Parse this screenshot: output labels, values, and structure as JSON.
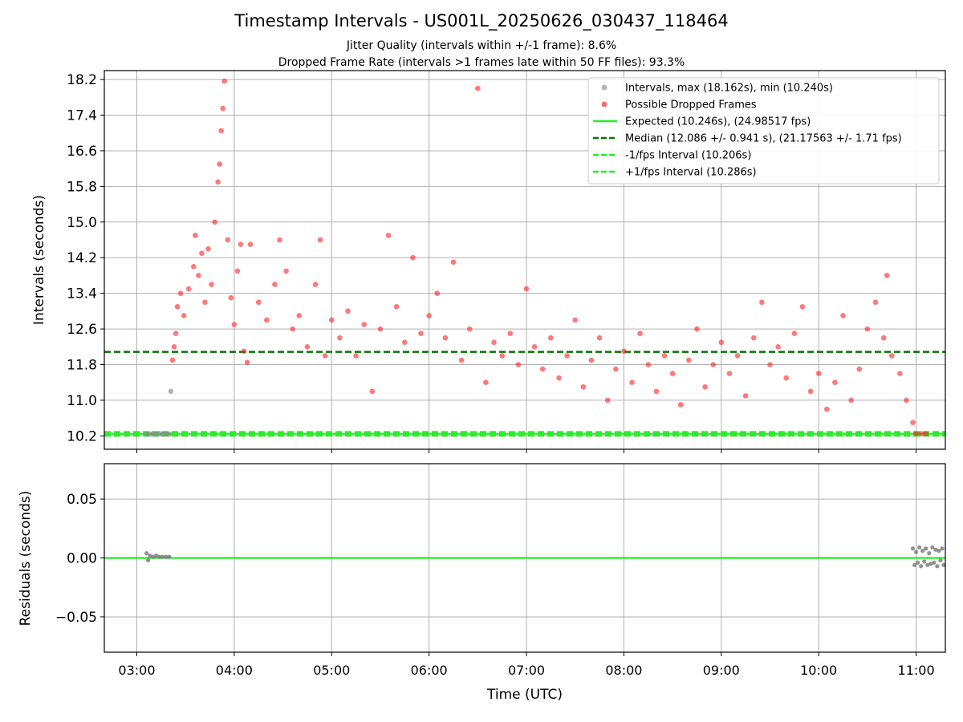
{
  "chart_data": [
    {
      "type": "scatter",
      "title": "Timestamp Intervals - US001L_20250626_030437_118464",
      "subtitles": [
        "Jitter Quality (intervals within +/-1 frame): 8.6%",
        "Dropped Frame Rate (intervals >1 frames late within 50 FF files): 93.3%"
      ],
      "xlabel": "",
      "ylabel": "Intervals (seconds)",
      "xlim": [
        "02:40",
        "11:18"
      ],
      "ylim": [
        9.9,
        18.4
      ],
      "yticks": [
        10.2,
        11.0,
        11.8,
        12.6,
        13.4,
        14.2,
        15.0,
        15.8,
        16.6,
        17.4,
        18.2
      ],
      "ytick_labels": [
        "10.2",
        "11.0",
        "11.8",
        "12.6",
        "13.4",
        "14.2",
        "15.0",
        "15.8",
        "16.6",
        "17.4",
        "18.2"
      ],
      "xticks": [
        "03:00",
        "04:00",
        "05:00",
        "06:00",
        "07:00",
        "08:00",
        "09:00",
        "10:00",
        "11:00"
      ],
      "grid": true,
      "legend_position": "top-right",
      "legend": [
        {
          "label": "Intervals, max (18.162s), min (10.240s)",
          "kind": "marker",
          "color": "#999999"
        },
        {
          "label": "Possible Dropped Frames",
          "kind": "marker",
          "color": "#ff3333"
        },
        {
          "label": "Expected (10.246s), (24.98517 fps)",
          "kind": "solid",
          "color": "#22ee22"
        },
        {
          "label": "Median (12.086 +/- 0.941 s), (21.17563 +/- 1.71 fps)",
          "kind": "dashed",
          "color": "#007700"
        },
        {
          "label": "-1/fps Interval (10.206s)",
          "kind": "dashed",
          "color": "#22ee22"
        },
        {
          "label": "+1/fps Interval (10.286s)",
          "kind": "dashed",
          "color": "#22ee22"
        }
      ],
      "reference_lines": [
        {
          "name": "Expected",
          "y": 10.246,
          "style": "solid",
          "color": "#22ee22"
        },
        {
          "name": "Median",
          "y": 12.086,
          "style": "dashed",
          "color": "#007700"
        },
        {
          "name": "-1/fps Interval",
          "y": 10.206,
          "style": "dashed",
          "color": "#22ee22"
        },
        {
          "name": "+1/fps Interval",
          "y": 10.286,
          "style": "dashed",
          "color": "#22ee22"
        }
      ],
      "series": [
        {
          "kind": "normal",
          "color": "#888888",
          "points": [
            {
              "x": "03:06",
              "y": 10.24
            },
            {
              "x": "03:08",
              "y": 10.24
            },
            {
              "x": "03:10",
              "y": 10.25
            },
            {
              "x": "03:12",
              "y": 10.24
            },
            {
              "x": "03:14",
              "y": 10.25
            },
            {
              "x": "03:16",
              "y": 10.24
            },
            {
              "x": "03:18",
              "y": 10.25
            },
            {
              "x": "03:20",
              "y": 10.24
            },
            {
              "x": "03:21",
              "y": 11.2
            }
          ]
        },
        {
          "kind": "dropped",
          "color": "#ff2020",
          "points": [
            {
              "x": "03:22",
              "y": 11.9
            },
            {
              "x": "03:23",
              "y": 12.2
            },
            {
              "x": "03:24",
              "y": 12.5
            },
            {
              "x": "03:25",
              "y": 13.1
            },
            {
              "x": "03:27",
              "y": 13.4
            },
            {
              "x": "03:29",
              "y": 12.9
            },
            {
              "x": "03:32",
              "y": 13.5
            },
            {
              "x": "03:35",
              "y": 14.0
            },
            {
              "x": "03:36",
              "y": 14.7
            },
            {
              "x": "03:38",
              "y": 13.8
            },
            {
              "x": "03:40",
              "y": 14.3
            },
            {
              "x": "03:42",
              "y": 13.2
            },
            {
              "x": "03:44",
              "y": 14.4
            },
            {
              "x": "03:46",
              "y": 13.6
            },
            {
              "x": "03:48",
              "y": 15.0
            },
            {
              "x": "03:50",
              "y": 15.9
            },
            {
              "x": "03:51",
              "y": 16.3
            },
            {
              "x": "03:52",
              "y": 17.05
            },
            {
              "x": "03:53",
              "y": 17.55
            },
            {
              "x": "03:54",
              "y": 18.162
            },
            {
              "x": "03:56",
              "y": 14.6
            },
            {
              "x": "03:58",
              "y": 13.3
            },
            {
              "x": "04:00",
              "y": 12.7
            },
            {
              "x": "04:02",
              "y": 13.9
            },
            {
              "x": "04:04",
              "y": 14.5
            },
            {
              "x": "04:06",
              "y": 12.1
            },
            {
              "x": "04:08",
              "y": 11.85
            },
            {
              "x": "04:10",
              "y": 14.5
            },
            {
              "x": "04:15",
              "y": 13.2
            },
            {
              "x": "04:20",
              "y": 12.8
            },
            {
              "x": "04:25",
              "y": 13.6
            },
            {
              "x": "04:28",
              "y": 14.6
            },
            {
              "x": "04:32",
              "y": 13.9
            },
            {
              "x": "04:36",
              "y": 12.6
            },
            {
              "x": "04:40",
              "y": 12.9
            },
            {
              "x": "04:45",
              "y": 12.2
            },
            {
              "x": "04:50",
              "y": 13.6
            },
            {
              "x": "04:53",
              "y": 14.6
            },
            {
              "x": "04:56",
              "y": 12.0
            },
            {
              "x": "05:00",
              "y": 12.8
            },
            {
              "x": "05:05",
              "y": 12.4
            },
            {
              "x": "05:10",
              "y": 13.0
            },
            {
              "x": "05:15",
              "y": 12.0
            },
            {
              "x": "05:20",
              "y": 12.7
            },
            {
              "x": "05:25",
              "y": 11.2
            },
            {
              "x": "05:30",
              "y": 12.6
            },
            {
              "x": "05:35",
              "y": 14.7
            },
            {
              "x": "05:40",
              "y": 13.1
            },
            {
              "x": "05:45",
              "y": 12.3
            },
            {
              "x": "05:50",
              "y": 14.2
            },
            {
              "x": "05:55",
              "y": 12.5
            },
            {
              "x": "06:00",
              "y": 12.9
            },
            {
              "x": "06:05",
              "y": 13.4
            },
            {
              "x": "06:10",
              "y": 12.4
            },
            {
              "x": "06:15",
              "y": 14.1
            },
            {
              "x": "06:20",
              "y": 11.9
            },
            {
              "x": "06:25",
              "y": 12.6
            },
            {
              "x": "06:30",
              "y": 18.0
            },
            {
              "x": "06:35",
              "y": 11.4
            },
            {
              "x": "06:40",
              "y": 12.3
            },
            {
              "x": "06:45",
              "y": 12.0
            },
            {
              "x": "06:50",
              "y": 12.5
            },
            {
              "x": "06:55",
              "y": 11.8
            },
            {
              "x": "07:00",
              "y": 13.5
            },
            {
              "x": "07:05",
              "y": 12.2
            },
            {
              "x": "07:10",
              "y": 11.7
            },
            {
              "x": "07:15",
              "y": 12.4
            },
            {
              "x": "07:20",
              "y": 11.5
            },
            {
              "x": "07:25",
              "y": 12.0
            },
            {
              "x": "07:30",
              "y": 12.8
            },
            {
              "x": "07:35",
              "y": 11.3
            },
            {
              "x": "07:40",
              "y": 11.9
            },
            {
              "x": "07:45",
              "y": 12.4
            },
            {
              "x": "07:50",
              "y": 11.0
            },
            {
              "x": "07:55",
              "y": 11.7
            },
            {
              "x": "08:00",
              "y": 12.1
            },
            {
              "x": "08:05",
              "y": 11.4
            },
            {
              "x": "08:10",
              "y": 12.5
            },
            {
              "x": "08:15",
              "y": 11.8
            },
            {
              "x": "08:20",
              "y": 11.2
            },
            {
              "x": "08:25",
              "y": 12.0
            },
            {
              "x": "08:30",
              "y": 11.6
            },
            {
              "x": "08:35",
              "y": 10.9
            },
            {
              "x": "08:40",
              "y": 11.9
            },
            {
              "x": "08:45",
              "y": 12.6
            },
            {
              "x": "08:50",
              "y": 11.3
            },
            {
              "x": "08:55",
              "y": 11.8
            },
            {
              "x": "09:00",
              "y": 12.3
            },
            {
              "x": "09:05",
              "y": 11.6
            },
            {
              "x": "09:10",
              "y": 12.0
            },
            {
              "x": "09:15",
              "y": 11.1
            },
            {
              "x": "09:20",
              "y": 12.4
            },
            {
              "x": "09:25",
              "y": 13.2
            },
            {
              "x": "09:30",
              "y": 11.8
            },
            {
              "x": "09:35",
              "y": 12.2
            },
            {
              "x": "09:40",
              "y": 11.5
            },
            {
              "x": "09:45",
              "y": 12.5
            },
            {
              "x": "09:50",
              "y": 13.1
            },
            {
              "x": "09:55",
              "y": 11.2
            },
            {
              "x": "10:00",
              "y": 11.6
            },
            {
              "x": "10:05",
              "y": 10.8
            },
            {
              "x": "10:10",
              "y": 11.4
            },
            {
              "x": "10:15",
              "y": 12.9
            },
            {
              "x": "10:20",
              "y": 11.0
            },
            {
              "x": "10:25",
              "y": 11.7
            },
            {
              "x": "10:30",
              "y": 12.6
            },
            {
              "x": "10:35",
              "y": 13.2
            },
            {
              "x": "10:40",
              "y": 12.4
            },
            {
              "x": "10:42",
              "y": 13.8
            },
            {
              "x": "10:45",
              "y": 12.0
            },
            {
              "x": "10:50",
              "y": 11.6
            },
            {
              "x": "10:54",
              "y": 11.0
            },
            {
              "x": "10:58",
              "y": 10.5
            },
            {
              "x": "11:00",
              "y": 10.25
            },
            {
              "x": "11:03",
              "y": 10.25
            },
            {
              "x": "11:06",
              "y": 10.25
            }
          ]
        }
      ]
    },
    {
      "type": "scatter",
      "xlabel": "Time (UTC)",
      "ylabel": "Residuals (seconds)",
      "xlim": [
        "02:40",
        "11:18"
      ],
      "ylim": [
        -0.08,
        0.08
      ],
      "yticks": [
        -0.05,
        0.0,
        0.05
      ],
      "ytick_labels": [
        "−0.05",
        "0.00",
        "0.05"
      ],
      "xticks": [
        "03:00",
        "04:00",
        "05:00",
        "06:00",
        "07:00",
        "08:00",
        "09:00",
        "10:00",
        "11:00"
      ],
      "grid": true,
      "reference_lines": [
        {
          "name": "Expected",
          "y": 0.0,
          "style": "solid",
          "color": "#22ee22"
        }
      ],
      "series": [
        {
          "kind": "residual",
          "color": "#777777",
          "points": [
            {
              "x": "03:06",
              "y": 0.004
            },
            {
              "x": "03:07",
              "y": -0.002
            },
            {
              "x": "03:08",
              "y": 0.002
            },
            {
              "x": "03:10",
              "y": 0.001
            },
            {
              "x": "03:12",
              "y": 0.002
            },
            {
              "x": "03:14",
              "y": 0.001
            },
            {
              "x": "03:16",
              "y": 0.001
            },
            {
              "x": "03:18",
              "y": 0.001
            },
            {
              "x": "03:20",
              "y": 0.001
            },
            {
              "x": "10:58",
              "y": 0.008
            },
            {
              "x": "10:59",
              "y": -0.006
            },
            {
              "x": "11:00",
              "y": 0.005
            },
            {
              "x": "11:01",
              "y": -0.004
            },
            {
              "x": "11:02",
              "y": 0.009
            },
            {
              "x": "11:03",
              "y": -0.007
            },
            {
              "x": "11:04",
              "y": 0.006
            },
            {
              "x": "11:05",
              "y": -0.003
            },
            {
              "x": "11:06",
              "y": 0.008
            },
            {
              "x": "11:07",
              "y": -0.006
            },
            {
              "x": "11:08",
              "y": 0.004
            },
            {
              "x": "11:09",
              "y": -0.005
            },
            {
              "x": "11:10",
              "y": 0.009
            },
            {
              "x": "11:11",
              "y": -0.004
            },
            {
              "x": "11:12",
              "y": 0.007
            },
            {
              "x": "11:13",
              "y": -0.007
            },
            {
              "x": "11:14",
              "y": 0.006
            },
            {
              "x": "11:15",
              "y": -0.002
            },
            {
              "x": "11:16",
              "y": 0.008
            },
            {
              "x": "11:17",
              "y": -0.006
            }
          ]
        }
      ]
    }
  ]
}
